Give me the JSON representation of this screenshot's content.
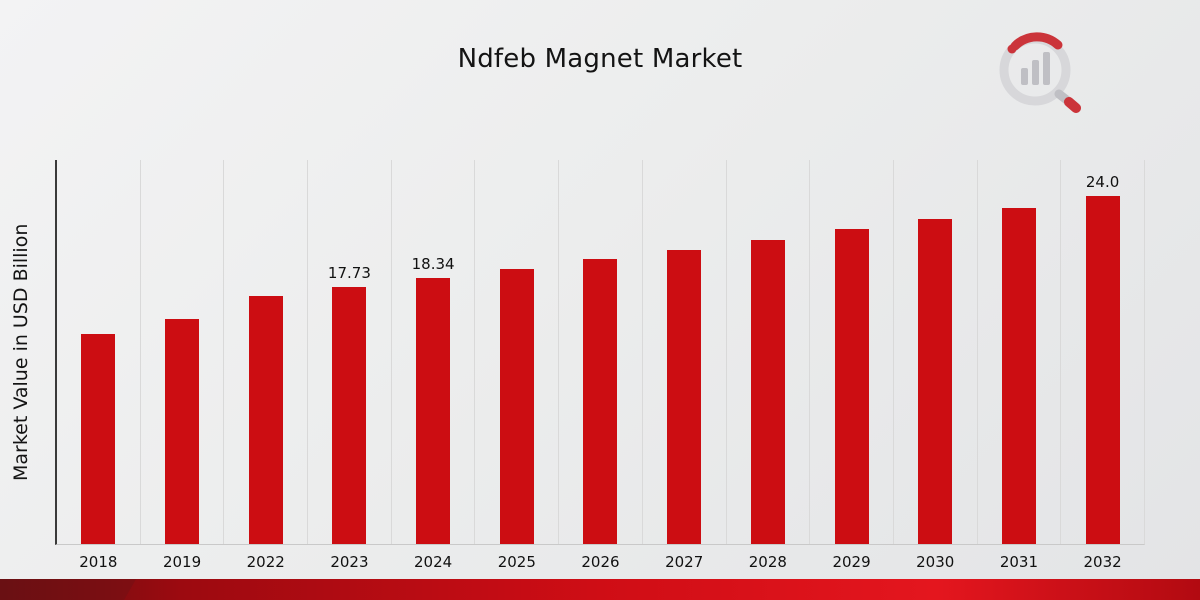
{
  "header": {
    "title": "Ndfeb Magnet Market"
  },
  "chart_data": {
    "type": "bar",
    "title": "Ndfeb Magnet Market",
    "xlabel": "",
    "ylabel": "Market Value in USD Billion",
    "categories": [
      "2018",
      "2019",
      "2022",
      "2023",
      "2024",
      "2025",
      "2026",
      "2027",
      "2028",
      "2029",
      "2030",
      "2031",
      "2032"
    ],
    "values": [
      14.5,
      15.52,
      17.15,
      17.73,
      18.34,
      19.0,
      19.65,
      20.32,
      21.0,
      21.72,
      22.46,
      23.22,
      24.0
    ],
    "data_labels": [
      "",
      "",
      "",
      "17.73",
      "18.34",
      "",
      "",
      "",
      "",
      "",
      "",
      "",
      "24.0"
    ],
    "ylim": [
      0,
      26.5
    ],
    "grid": "vertical",
    "legend": "none",
    "bar_color": "#cc0d12"
  },
  "branding": {
    "logo_icon": "bar-chart-magnifier-logo"
  },
  "colors": {
    "bar": "#cc0d12",
    "ribbon_dark": "#5f1012",
    "ribbon_bright": "#e4161e",
    "background": "#eceded",
    "gridline": "#d9d9d9",
    "axis": "#3a3a3a"
  }
}
